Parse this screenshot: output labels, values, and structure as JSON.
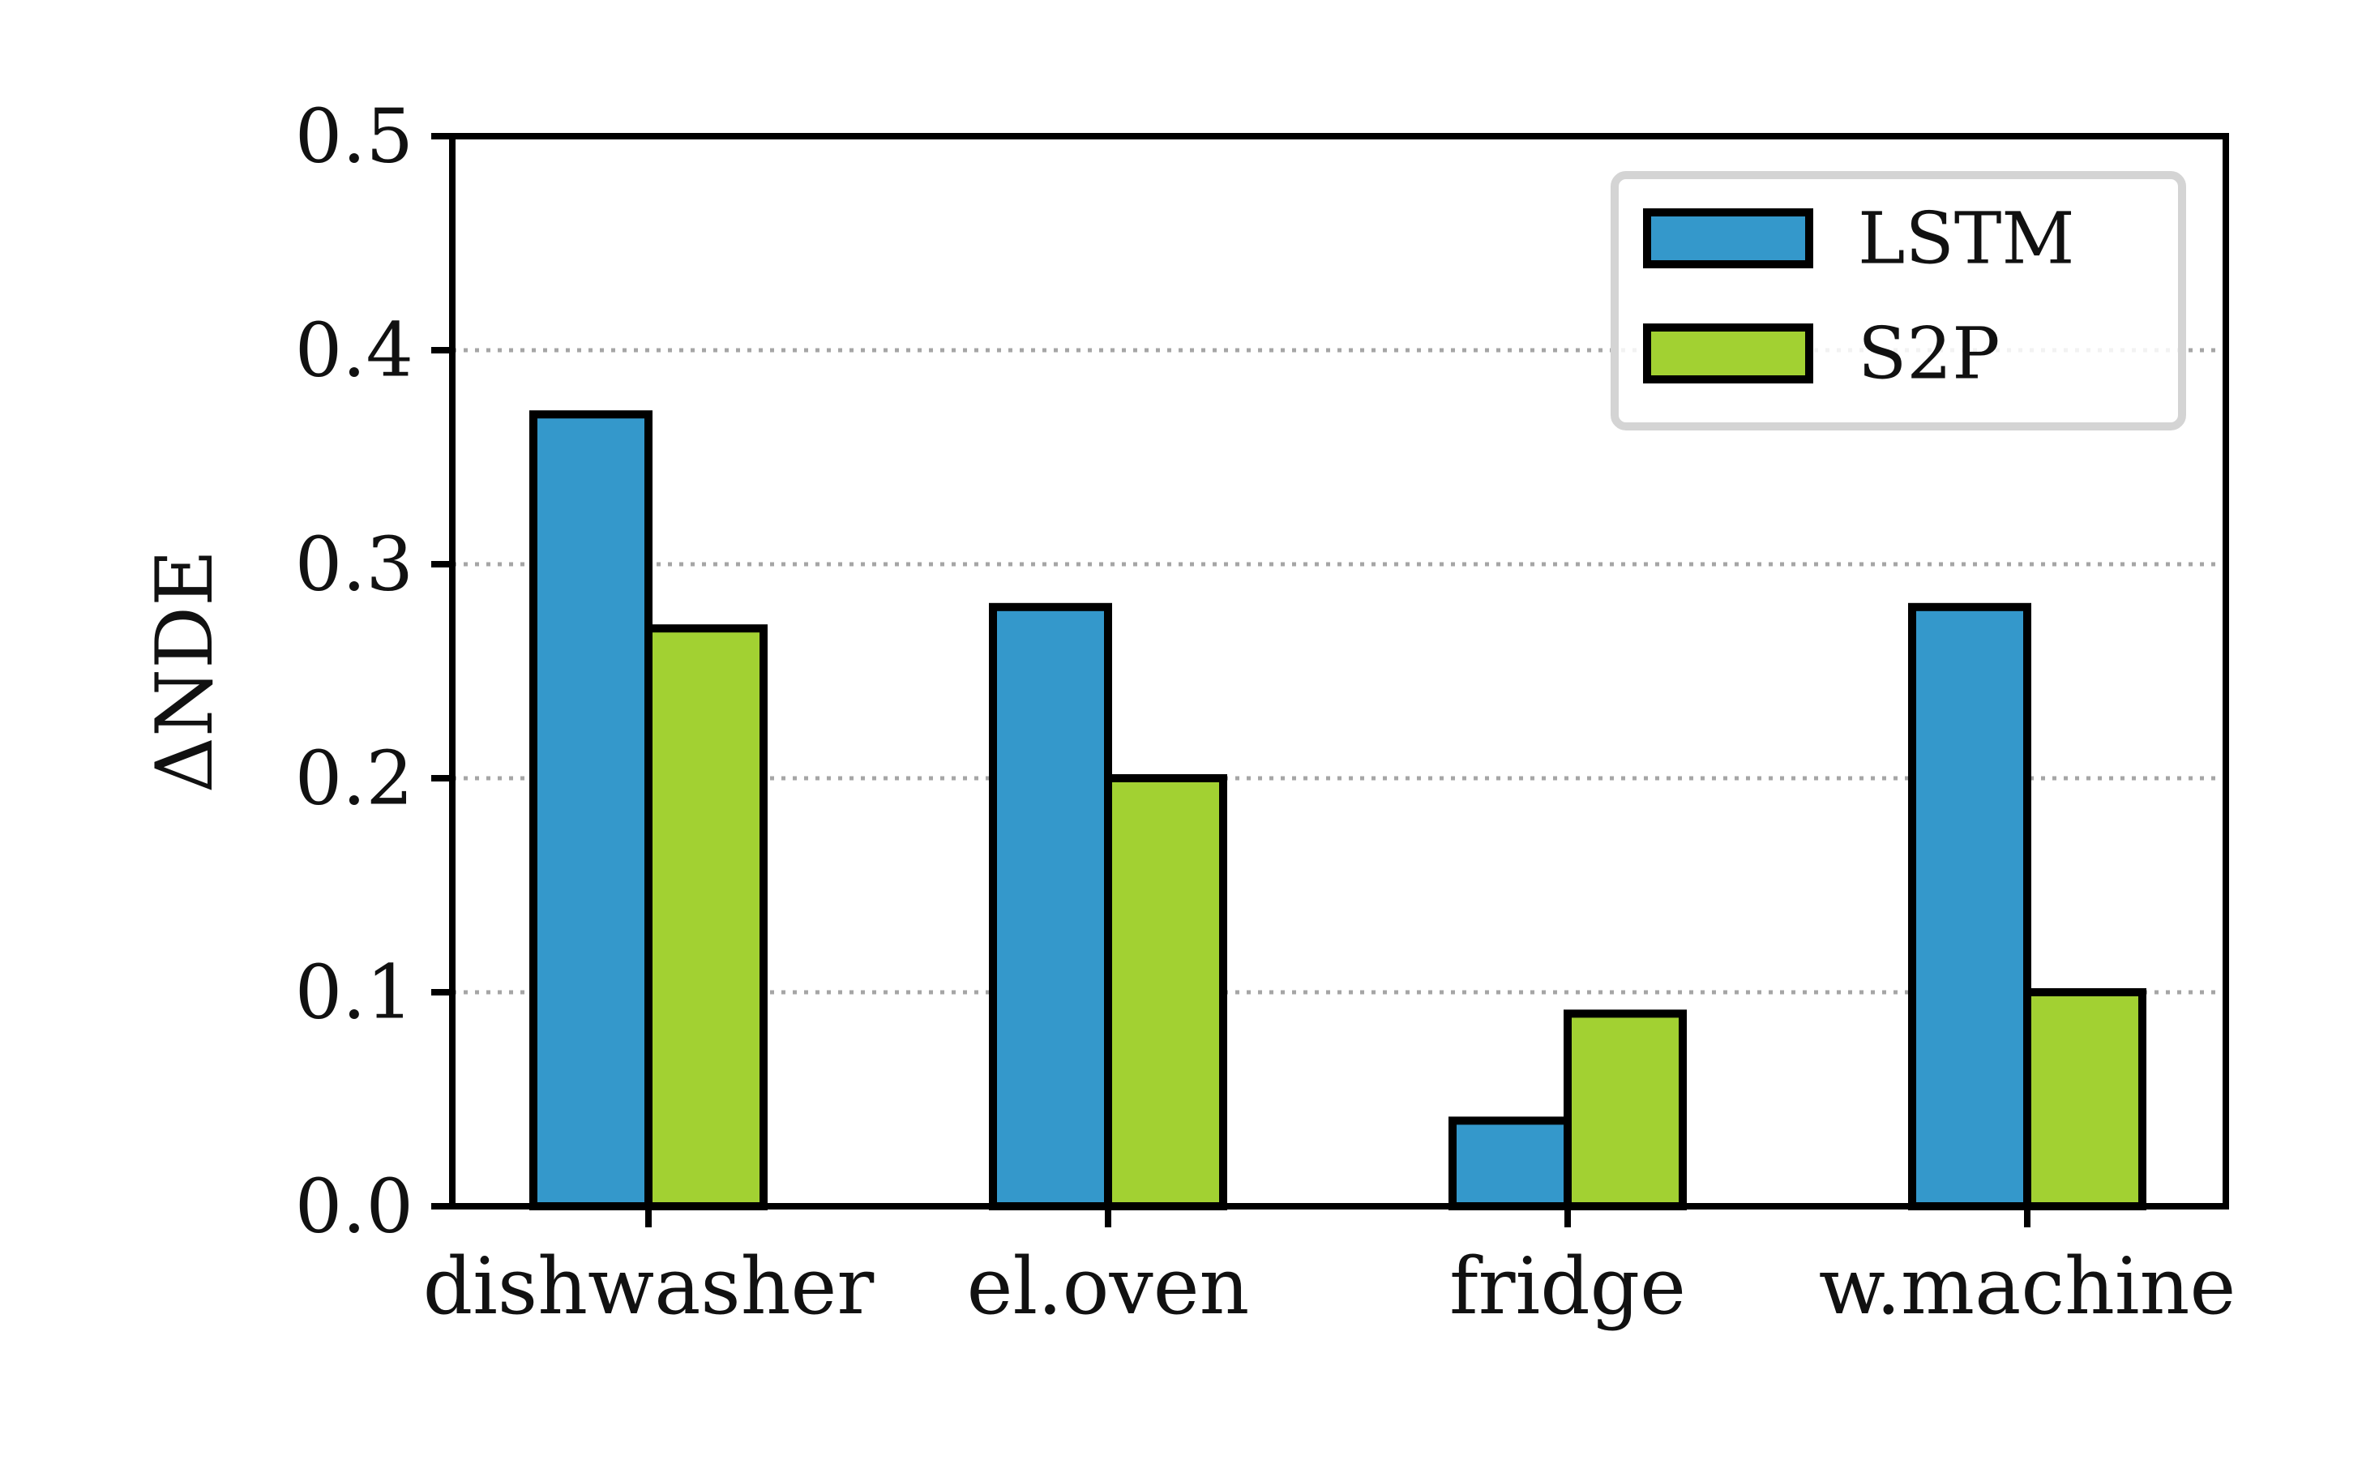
{
  "chart_data": {
    "type": "bar",
    "categories": [
      "dishwasher",
      "el.oven",
      "fridge",
      "w.machine"
    ],
    "series": [
      {
        "name": "LSTM",
        "color": "#3498cb",
        "values": [
          0.37,
          0.28,
          0.04,
          0.28
        ]
      },
      {
        "name": "S2P",
        "color": "#a2d132",
        "values": [
          0.27,
          0.2,
          0.09,
          0.1
        ]
      }
    ],
    "title": "",
    "xlabel": "",
    "ylabel": "ΔNDE",
    "ylim": [
      0,
      0.5
    ],
    "yticks": [
      "0.0",
      "0.1",
      "0.2",
      "0.3",
      "0.4",
      "0.5"
    ],
    "grid": "horizontal dotted",
    "legend_position": "top-right"
  }
}
